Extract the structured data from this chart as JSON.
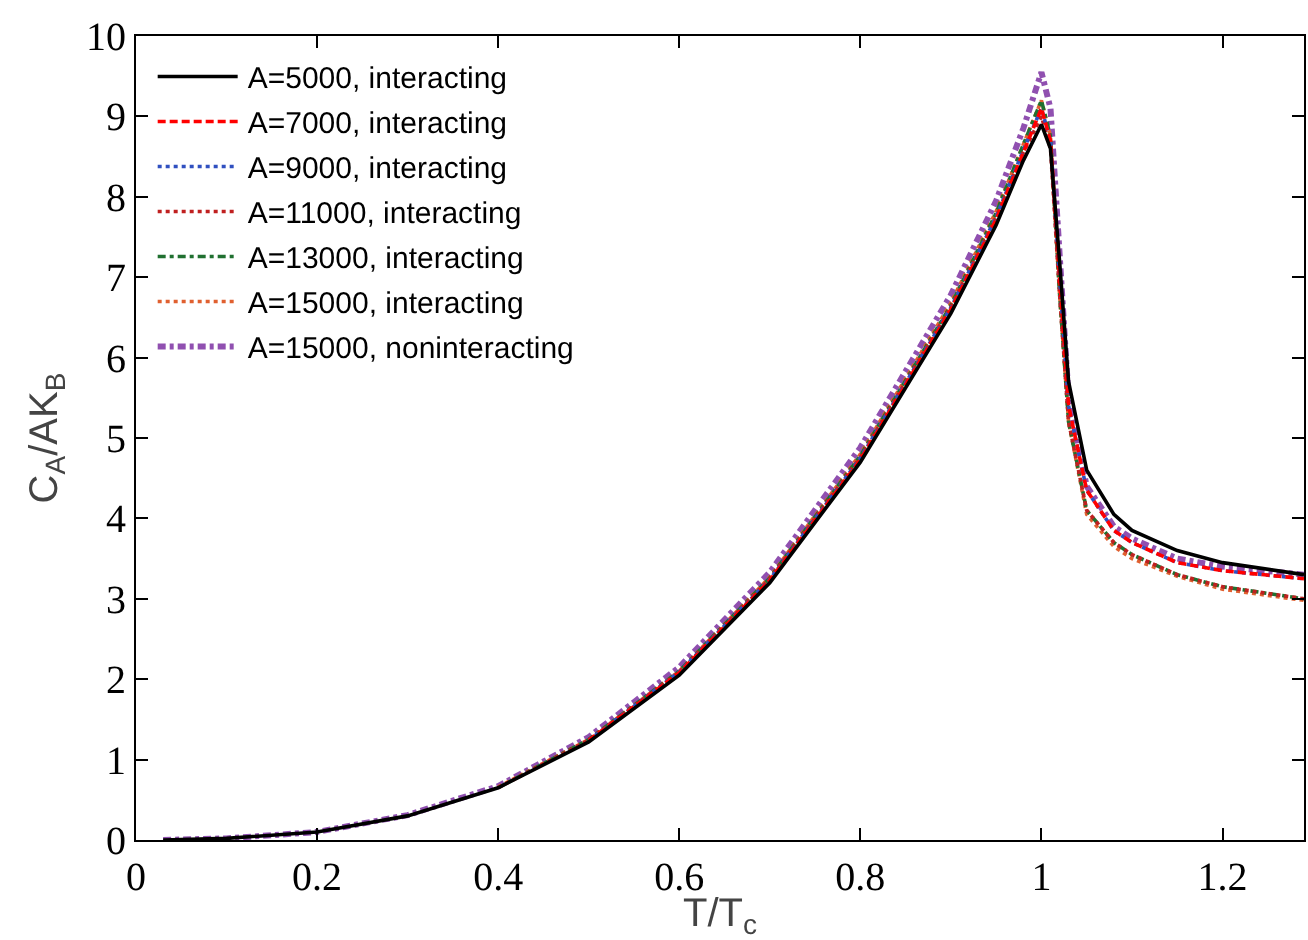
{
  "chart_data": {
    "type": "line",
    "xlabel": "T/T$_{c}$",
    "ylabel": "C$_{A}$/AK$_{B}$",
    "x": [
      0.03,
      0.1,
      0.2,
      0.3,
      0.4,
      0.5,
      0.6,
      0.7,
      0.8,
      0.9,
      0.95,
      0.98,
      1.0,
      1.01,
      1.02,
      1.03,
      1.05,
      1.08,
      1.1,
      1.15,
      1.2,
      1.29
    ],
    "series": [
      {
        "name": "A=5000, interacting",
        "color": "#000000",
        "line_style": "solid",
        "values": [
          0,
          0.02,
          0.1,
          0.3,
          0.65,
          1.22,
          2.05,
          3.2,
          4.7,
          6.55,
          7.65,
          8.45,
          8.9,
          8.6,
          7.2,
          5.7,
          4.6,
          4.05,
          3.85,
          3.6,
          3.45,
          3.3
        ]
      },
      {
        "name": "A=7000, interacting",
        "color": "#ff0000",
        "line_style": "dashed",
        "values": [
          null,
          null,
          null,
          null,
          null,
          1.24,
          2.08,
          3.23,
          4.73,
          6.6,
          7.72,
          8.55,
          9.1,
          8.7,
          7.0,
          5.4,
          4.35,
          3.85,
          3.7,
          3.45,
          3.35,
          3.25
        ]
      },
      {
        "name": "A=9000, interacting",
        "color": "#3050c0",
        "line_style": "dotted",
        "values": [
          null,
          null,
          null,
          null,
          null,
          1.24,
          2.09,
          3.24,
          4.75,
          6.62,
          7.75,
          8.58,
          9.1,
          8.7,
          7.0,
          5.4,
          4.35,
          3.85,
          3.7,
          3.45,
          3.35,
          3.25
        ]
      },
      {
        "name": "A=11000, interacting",
        "color": "#c02020",
        "line_style": "dotted",
        "values": [
          null,
          null,
          null,
          null,
          0.65,
          1.24,
          2.09,
          3.25,
          4.76,
          6.63,
          7.75,
          8.55,
          9.0,
          8.6,
          6.8,
          5.2,
          4.1,
          3.7,
          3.55,
          3.3,
          3.15,
          3.0
        ]
      },
      {
        "name": "A=13000, interacting",
        "color": "#207030",
        "line_style": "dashdot",
        "values": [
          null,
          null,
          null,
          null,
          0.65,
          1.25,
          2.1,
          3.26,
          4.78,
          6.65,
          7.8,
          8.65,
          9.2,
          8.75,
          6.8,
          5.2,
          4.1,
          3.7,
          3.55,
          3.3,
          3.15,
          3.0
        ]
      },
      {
        "name": "A=15000, interacting",
        "color": "#e06030",
        "line_style": "dotted",
        "values": [
          null,
          null,
          null,
          null,
          0.66,
          1.25,
          2.1,
          3.27,
          4.8,
          6.68,
          7.82,
          8.65,
          9.2,
          8.75,
          6.8,
          5.2,
          4.05,
          3.65,
          3.5,
          3.28,
          3.12,
          2.98
        ]
      },
      {
        "name": "A=15000, noninteracting",
        "color": "#9050b0",
        "line_style": "dashdot",
        "values": [
          0,
          0.02,
          0.1,
          0.31,
          0.67,
          1.28,
          2.15,
          3.33,
          4.88,
          6.78,
          7.95,
          8.85,
          9.55,
          9.1,
          7.3,
          5.5,
          4.4,
          3.9,
          3.75,
          3.5,
          3.4,
          3.3
        ]
      }
    ],
    "xlim": [
      0,
      1.29
    ],
    "xticks": [
      0,
      0.2,
      0.4,
      0.6,
      0.8,
      1,
      1.2
    ],
    "ylim": [
      0,
      10
    ],
    "yticks": [
      0,
      1,
      2,
      3,
      4,
      5,
      6,
      7,
      8,
      9,
      10
    ],
    "grid": false,
    "legend": "top left",
    "marker": "none"
  }
}
